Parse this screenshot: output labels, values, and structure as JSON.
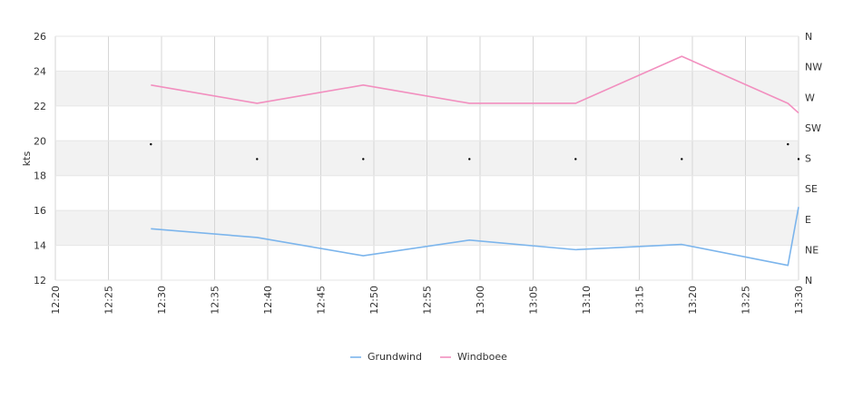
{
  "chart_data": {
    "type": "line",
    "ylabel": "kts",
    "ylim": [
      12,
      26
    ],
    "yticks": [
      12,
      14,
      16,
      18,
      20,
      22,
      24,
      26
    ],
    "y2ticks": [
      "N",
      "NE",
      "E",
      "SE",
      "S",
      "SW",
      "W",
      "NW",
      "N"
    ],
    "xlim": [
      "12:20",
      "13:30"
    ],
    "xticks": [
      "12:20",
      "12:25",
      "12:30",
      "12:35",
      "12:40",
      "12:45",
      "12:50",
      "12:55",
      "13:00",
      "13:05",
      "13:10",
      "13:15",
      "13:20",
      "13:25",
      "13:30"
    ],
    "bands": [
      [
        14,
        16
      ],
      [
        18,
        20
      ],
      [
        22,
        24
      ]
    ],
    "grid": true,
    "legend_position": "bottom",
    "series": [
      {
        "name": "Grundwind",
        "color": "#7cb5ec",
        "points": [
          [
            "12:29",
            14.95
          ],
          [
            "12:39",
            14.45
          ],
          [
            "12:49",
            13.4
          ],
          [
            "12:59",
            14.3
          ],
          [
            "13:09",
            13.75
          ],
          [
            "13:19",
            14.05
          ],
          [
            "13:29",
            12.85
          ],
          [
            "13:30",
            16.2
          ]
        ]
      },
      {
        "name": "Windboee",
        "color": "#f28fbf",
        "points": [
          [
            "12:29",
            23.2
          ],
          [
            "12:39",
            22.15
          ],
          [
            "12:49",
            23.2
          ],
          [
            "12:59",
            22.15
          ],
          [
            "13:09",
            22.15
          ],
          [
            "13:19",
            24.85
          ],
          [
            "13:29",
            22.15
          ],
          [
            "13:30",
            21.6
          ]
        ]
      }
    ],
    "direction_markers": {
      "color": "#000000",
      "points": [
        [
          "12:29",
          "SSW"
        ],
        [
          "12:39",
          "S"
        ],
        [
          "12:49",
          "S"
        ],
        [
          "12:59",
          "S"
        ],
        [
          "13:09",
          "S"
        ],
        [
          "13:19",
          "S"
        ],
        [
          "13:29",
          "SSW"
        ],
        [
          "13:30",
          "S"
        ]
      ]
    }
  }
}
